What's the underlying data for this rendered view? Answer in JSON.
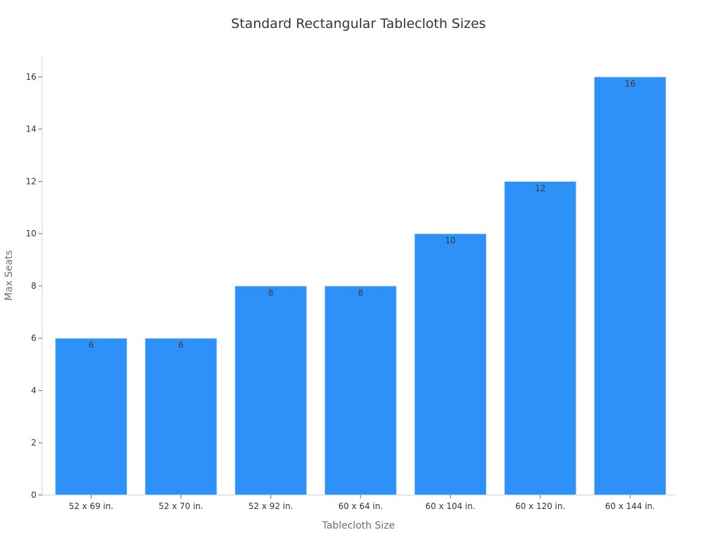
{
  "chart_data": {
    "type": "bar",
    "title": "Standard Rectangular Tablecloth Sizes",
    "xlabel": "Tablecloth Size",
    "ylabel": "Max Seats",
    "categories": [
      "52 x 69 in.",
      "52 x 70 in.",
      "52 x 92 in.",
      "60 x 64 in.",
      "60 x 104 in.",
      "60 x 120 in.",
      "60 x 144 in."
    ],
    "values": [
      6,
      6,
      8,
      8,
      10,
      12,
      16
    ],
    "ylim": [
      0,
      16.8
    ],
    "yticks": [
      "0",
      "2",
      "4",
      "6",
      "8",
      "10",
      "12",
      "14",
      "16"
    ],
    "data_labels": [
      "6",
      "6",
      "8",
      "8",
      "10",
      "12",
      "16"
    ],
    "bar_color": "#2e91f8",
    "grid": false,
    "legend": "none"
  }
}
